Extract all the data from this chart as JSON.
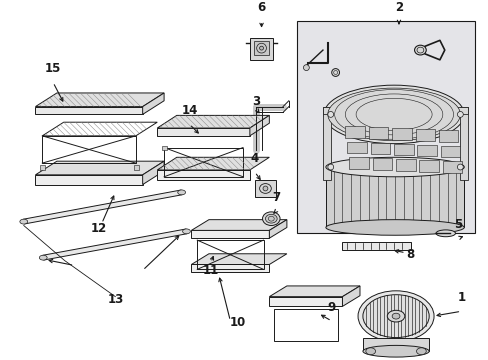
{
  "bg_color": "#ffffff",
  "lc": "#1a1a1a",
  "gray_fill": "#e8e8e8",
  "gray_mid": "#d8d8d8",
  "gray_dark": "#c8c8c8",
  "box2_fill": "#e4e4e8",
  "fig_width": 4.89,
  "fig_height": 3.6,
  "dpi": 100
}
